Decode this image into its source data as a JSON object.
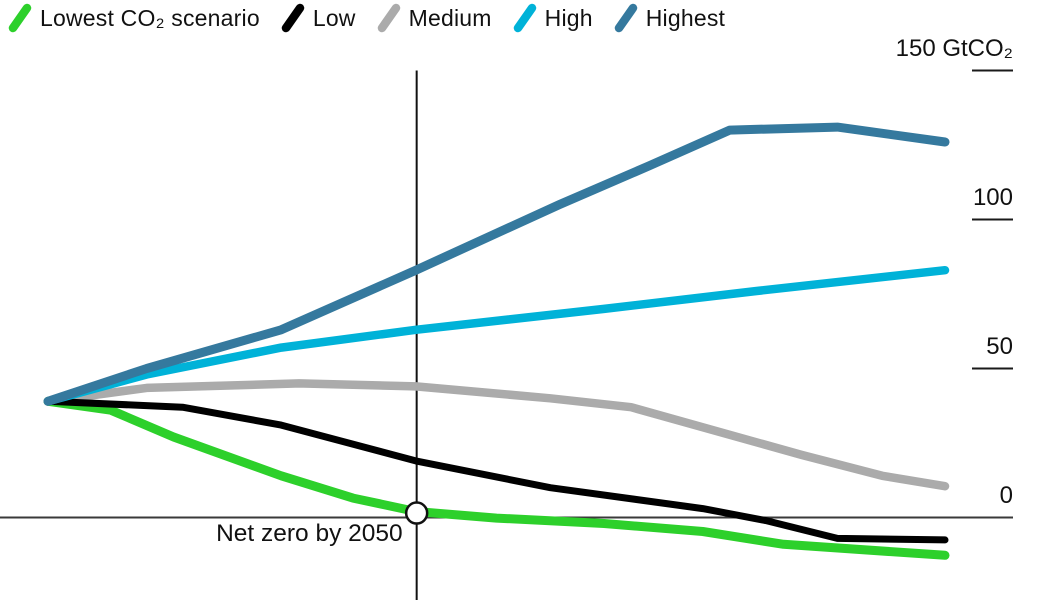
{
  "chart_data": {
    "type": "line",
    "title": "",
    "unit": "GtCO₂",
    "legend_position": "top",
    "grid": "off",
    "ylim": [
      -20,
      155
    ],
    "y_ticks": [
      {
        "value": 150,
        "label": "150 GtCO₂"
      },
      {
        "value": 100,
        "label": "100"
      },
      {
        "value": 50,
        "label": "50"
      },
      {
        "value": 0,
        "label": "0"
      }
    ],
    "x_axis_note": "no x tick labels visible; x given as fraction of timeline width; vertical reference line marks 2050",
    "series": [
      {
        "name": "Lowest CO₂ scenario",
        "color": "#2dd02b",
        "width": 9,
        "points": [
          [
            0,
            39
          ],
          [
            0.07,
            36
          ],
          [
            0.14,
            27
          ],
          [
            0.26,
            14
          ],
          [
            0.34,
            6.5
          ],
          [
            0.41,
            2
          ],
          [
            0.5,
            -0.2
          ],
          [
            0.62,
            -2
          ],
          [
            0.73,
            -4.7
          ],
          [
            0.82,
            -9
          ],
          [
            1,
            -12.7
          ]
        ]
      },
      {
        "name": "Low",
        "color": "#000000",
        "width": 7,
        "points": [
          [
            0,
            39
          ],
          [
            0.15,
            37
          ],
          [
            0.26,
            31
          ],
          [
            0.41,
            19
          ],
          [
            0.56,
            10
          ],
          [
            0.73,
            3
          ],
          [
            0.8,
            -1
          ],
          [
            0.88,
            -7
          ],
          [
            1,
            -7.5
          ]
        ]
      },
      {
        "name": "Medium",
        "color": "#ababab",
        "width": 8.5,
        "points": [
          [
            0,
            39
          ],
          [
            0.11,
            43.5
          ],
          [
            0.28,
            45
          ],
          [
            0.41,
            44
          ],
          [
            0.56,
            40
          ],
          [
            0.65,
            37
          ],
          [
            0.84,
            21
          ],
          [
            0.93,
            14
          ],
          [
            1,
            10.5
          ]
        ]
      },
      {
        "name": "High",
        "color": "#00b2d8",
        "width": 8.5,
        "points": [
          [
            0,
            39
          ],
          [
            0.11,
            48
          ],
          [
            0.26,
            57
          ],
          [
            0.41,
            63
          ],
          [
            0.62,
            70
          ],
          [
            0.79,
            76
          ],
          [
            1,
            83
          ]
        ]
      },
      {
        "name": "Highest",
        "color": "#35799e",
        "width": 9,
        "points": [
          [
            0,
            39
          ],
          [
            0.11,
            50
          ],
          [
            0.26,
            63
          ],
          [
            0.41,
            83
          ],
          [
            0.57,
            105
          ],
          [
            0.67,
            118
          ],
          [
            0.76,
            130
          ],
          [
            0.88,
            131
          ],
          [
            1,
            126
          ]
        ]
      }
    ],
    "annotations": {
      "net_zero": {
        "label": "Net zero by 2050",
        "x": 0.411,
        "y": 1.5,
        "marker": "open-circle"
      },
      "vline": {
        "x": 0.411
      }
    },
    "colors": {
      "axis_line": "#3a3a3a",
      "tick": "#1a1a1a",
      "vline": "#111111",
      "text": "#111111"
    }
  }
}
